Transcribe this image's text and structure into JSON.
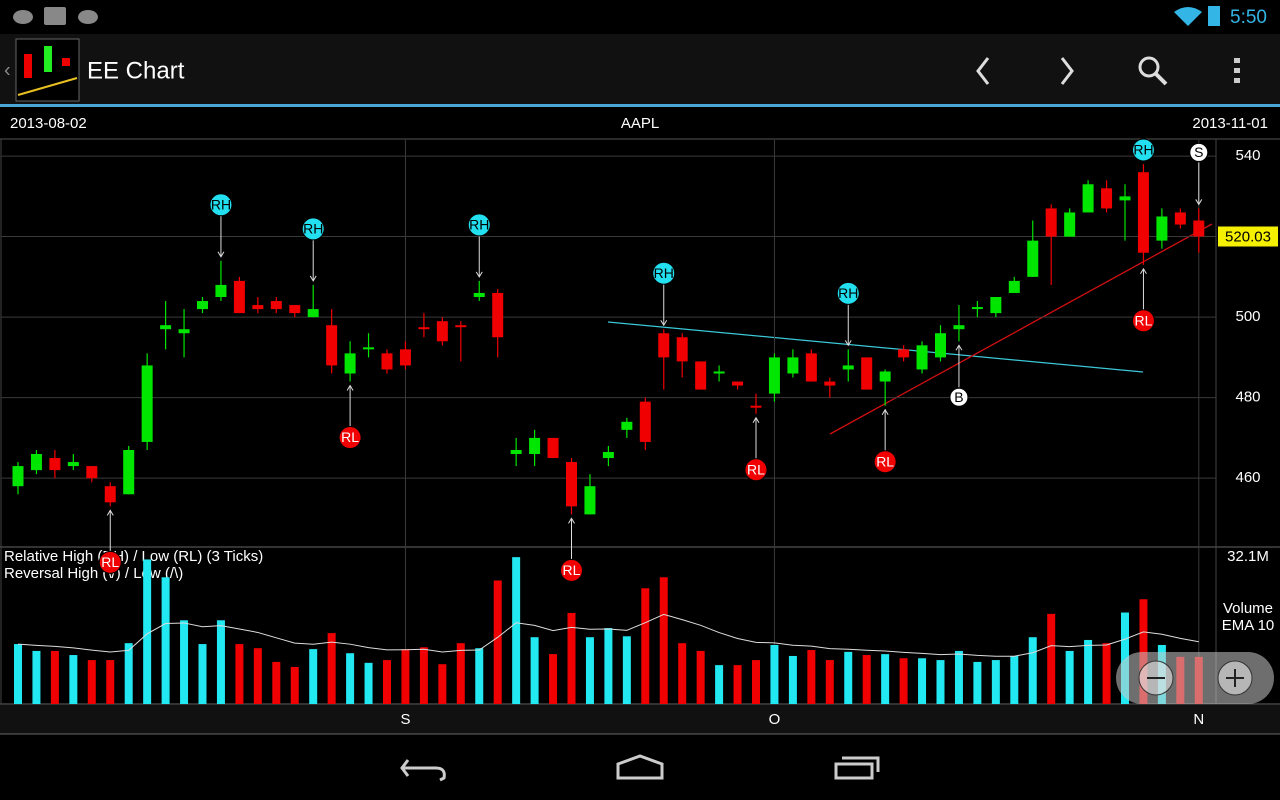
{
  "status_bar": {
    "time": "5:50"
  },
  "app_bar": {
    "title": "EE Chart"
  },
  "chart_data": {
    "type": "candlestick",
    "title": "AAPL",
    "start_date": "2013-08-02",
    "end_date": "2013-11-01",
    "legend_lines": [
      "Relative High (RH) / Low (RL) (3 Ticks)",
      "Reversal High (\\/) / Low (/\\)"
    ],
    "categories": [
      null,
      null,
      null,
      null,
      null,
      null,
      null,
      null,
      null,
      null,
      null,
      null,
      null,
      null,
      null,
      null,
      null,
      null,
      null,
      null,
      null,
      "S",
      null,
      null,
      null,
      null,
      null,
      null,
      null,
      null,
      null,
      null,
      null,
      null,
      null,
      null,
      null,
      null,
      null,
      null,
      null,
      "O",
      null,
      null,
      null,
      null,
      null,
      null,
      null,
      null,
      null,
      null,
      null,
      null,
      null,
      null,
      null,
      null,
      null,
      null,
      null,
      null,
      null,
      null,
      "N"
    ],
    "open": [
      458,
      462,
      465,
      463,
      463,
      458,
      456,
      469,
      497,
      496,
      502,
      505,
      509,
      503,
      504,
      503,
      500,
      498,
      486,
      492,
      491,
      492,
      497.5,
      499,
      498,
      505,
      506,
      466,
      466,
      470,
      464,
      451,
      465,
      472,
      479,
      496,
      495,
      489,
      486,
      484,
      478,
      481,
      486,
      491,
      484,
      487,
      490,
      484,
      492,
      487,
      490,
      497,
      502,
      501,
      506,
      510,
      527,
      520,
      526,
      532,
      529,
      536,
      519,
      526,
      524
    ],
    "high": [
      464,
      467,
      467,
      466,
      463,
      459,
      468,
      491,
      504,
      502,
      505,
      514,
      510,
      505,
      505,
      503,
      508,
      502,
      494,
      496,
      492,
      494,
      501,
      500,
      499,
      509,
      507,
      470,
      472,
      470,
      465,
      461,
      468,
      475,
      480,
      497,
      496,
      489,
      488,
      484,
      481,
      491,
      492,
      492,
      485,
      492,
      490,
      487,
      493,
      494,
      498,
      503,
      504,
      505,
      510,
      524,
      528,
      527,
      534,
      534,
      533,
      538,
      527,
      527,
      527
    ],
    "low": [
      456,
      461,
      460,
      462,
      459,
      453,
      456,
      467,
      492,
      490,
      501,
      504,
      501,
      501,
      501,
      500,
      500,
      486,
      484,
      490,
      486,
      487,
      495,
      493,
      489,
      504,
      490,
      463,
      463,
      465,
      451,
      451,
      463,
      470,
      467,
      482,
      485,
      482,
      484,
      482,
      476,
      479,
      485,
      484,
      480,
      484,
      482,
      478,
      489,
      486,
      489,
      494,
      500,
      500,
      506,
      510,
      508,
      520,
      526,
      526,
      519,
      513,
      517,
      522,
      516
    ],
    "close": [
      463,
      466,
      462,
      464,
      460,
      454,
      467,
      488,
      498,
      497,
      504,
      508,
      501,
      502,
      502,
      501,
      502,
      488,
      491,
      492.5,
      487,
      488,
      497,
      494,
      497.5,
      506,
      495,
      467,
      470,
      465,
      453,
      458,
      466.5,
      474,
      469,
      490,
      489,
      482,
      486.5,
      483,
      477.5,
      490,
      490,
      484,
      483,
      488,
      482,
      486.5,
      490,
      493,
      496,
      498,
      502.5,
      505,
      509,
      519,
      520,
      526,
      533,
      527,
      530,
      516,
      525,
      523,
      520.03
    ],
    "ylim": [
      442.9,
      544
    ],
    "yticks": [
      460,
      480,
      500,
      540
    ],
    "last_price": 520.03,
    "grid": true,
    "up_color": "#00e600",
    "down_color": "#f00000",
    "volume": [
      13.1,
      11.6,
      11.6,
      10.7,
      9.6,
      9.6,
      13.3,
      31.6,
      27.7,
      18.3,
      13.1,
      18.3,
      13.1,
      12.2,
      9.2,
      8.1,
      12.0,
      15.5,
      11.1,
      9.0,
      9.6,
      12.0,
      12.4,
      8.7,
      13.3,
      12.2,
      27.0,
      32.1,
      14.6,
      10.9,
      19.9,
      14.6,
      16.6,
      14.8,
      25.3,
      27.7,
      13.3,
      11.6,
      8.5,
      8.5,
      9.6,
      12.9,
      10.5,
      11.8,
      9.6,
      11.4,
      10.7,
      10.9,
      10.0,
      10.0,
      9.6,
      11.6,
      9.2,
      9.6,
      10.5,
      14.6,
      19.7,
      11.6,
      14.0,
      13.3,
      20.0,
      22.9,
      12.9,
      10.3,
      10.3
    ],
    "volume_ylim": [
      0,
      34.1
    ],
    "volume_yticks": [
      {
        "value": 32.1,
        "label": "32.1M"
      }
    ],
    "volume_label": "Volume",
    "ema_label": "EMA 10",
    "ema_period": 10,
    "volume_up_color": "#22e8f2",
    "volume_down_color": "#f00000",
    "top_signals": [
      null,
      null,
      null,
      null,
      null,
      null,
      null,
      null,
      null,
      null,
      null,
      {
        "label": "RH",
        "color": "#22e0f0"
      },
      null,
      null,
      null,
      null,
      {
        "label": "RH",
        "color": "#22e0f0"
      },
      null,
      null,
      null,
      null,
      null,
      null,
      null,
      null,
      {
        "label": "RH",
        "color": "#22e0f0"
      },
      null,
      null,
      null,
      null,
      null,
      null,
      null,
      null,
      null,
      {
        "label": "RH",
        "color": "#22e0f0"
      },
      null,
      null,
      null,
      null,
      null,
      null,
      null,
      null,
      null,
      {
        "label": "RH",
        "color": "#22e0f0"
      },
      null,
      null,
      null,
      null,
      null,
      null,
      null,
      null,
      null,
      null,
      null,
      null,
      null,
      null,
      null,
      {
        "label": "RH",
        "color": "#22e0f0"
      },
      null,
      null,
      {
        "label": "S",
        "color": "#ffffff"
      }
    ],
    "bottom_signals": [
      null,
      null,
      null,
      null,
      null,
      {
        "label": "RL",
        "color": "#f00000"
      },
      null,
      null,
      null,
      null,
      null,
      null,
      null,
      null,
      null,
      null,
      null,
      null,
      {
        "label": "RL",
        "color": "#f00000"
      },
      null,
      null,
      null,
      null,
      null,
      null,
      null,
      null,
      null,
      null,
      null,
      {
        "label": "RL",
        "color": "#f00000"
      },
      null,
      null,
      null,
      null,
      null,
      null,
      null,
      null,
      null,
      {
        "label": "RL",
        "color": "#f00000"
      },
      null,
      null,
      null,
      null,
      null,
      null,
      {
        "label": "RL",
        "color": "#f00000"
      },
      null,
      null,
      null,
      {
        "label": "B",
        "color": "#ffffff"
      },
      null,
      null,
      null,
      null,
      null,
      null,
      null,
      null,
      null,
      {
        "label": "RL",
        "color": "#f00000"
      },
      null,
      null,
      null
    ]
  }
}
